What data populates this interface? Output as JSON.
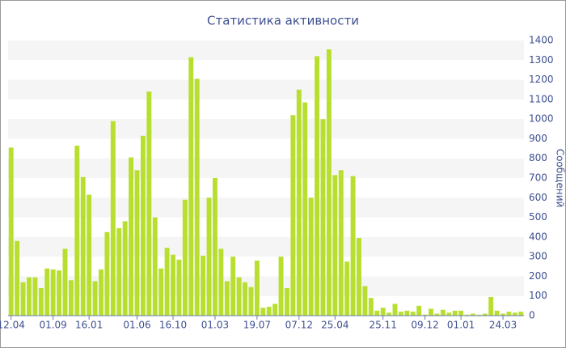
{
  "chart_data": {
    "type": "bar",
    "title": "Статистика активности",
    "y_label": "Сообщений",
    "categories": [
      "12.04",
      null,
      null,
      null,
      null,
      null,
      null,
      "01.09",
      null,
      null,
      null,
      null,
      null,
      "16.01",
      null,
      null,
      null,
      null,
      null,
      null,
      null,
      "01.06",
      null,
      null,
      null,
      null,
      null,
      "16.10",
      null,
      null,
      null,
      null,
      null,
      null,
      "01.03",
      null,
      null,
      null,
      null,
      null,
      null,
      "19.07",
      null,
      null,
      null,
      null,
      null,
      null,
      "07.12",
      null,
      null,
      null,
      null,
      null,
      "25.04",
      null,
      null,
      null,
      null,
      null,
      null,
      null,
      "25.11",
      null,
      null,
      null,
      null,
      null,
      null,
      "09.12",
      null,
      null,
      null,
      null,
      null,
      "01.01",
      null,
      null,
      null,
      null,
      null,
      null,
      "24.03",
      null,
      null,
      null
    ],
    "values": [
      855,
      380,
      170,
      195,
      195,
      140,
      240,
      235,
      230,
      340,
      180,
      865,
      705,
      615,
      175,
      235,
      425,
      990,
      445,
      480,
      805,
      740,
      915,
      1140,
      500,
      240,
      345,
      310,
      285,
      590,
      1315,
      1205,
      305,
      600,
      700,
      340,
      175,
      300,
      195,
      170,
      145,
      280,
      40,
      45,
      60,
      300,
      140,
      1020,
      1150,
      1085,
      600,
      1320,
      1000,
      1355,
      715,
      740,
      275,
      710,
      395,
      150,
      90,
      25,
      40,
      15,
      60,
      20,
      25,
      20,
      50,
      5,
      35,
      10,
      30,
      15,
      25,
      25,
      5,
      10,
      5,
      10,
      95,
      25,
      10,
      20,
      15,
      20
    ],
    "color": "#b8df2f",
    "ylim": [
      0,
      1400
    ],
    "yticks": [
      0,
      100,
      200,
      300,
      400,
      500,
      600,
      700,
      800,
      900,
      1000,
      1100,
      1200,
      1300,
      1400
    ],
    "grid": true
  }
}
